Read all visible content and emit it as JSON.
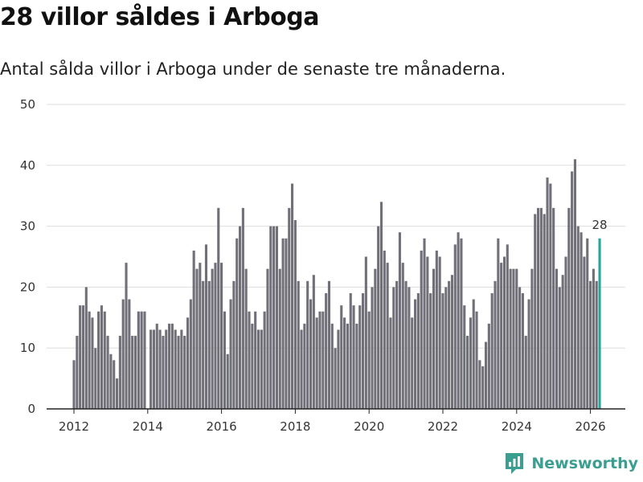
{
  "header": {
    "title": "28 villor såldes i Arboga",
    "subtitle": "Antal sålda villor i Arboga under de senaste tre månaderna."
  },
  "brand": {
    "name": "Newsworthy",
    "color": "#3a9e91"
  },
  "chart_data": {
    "type": "bar",
    "title": "28 villor såldes i Arboga",
    "subtitle": "Antal sålda villor i Arboga under de senaste tre månaderna.",
    "xlabel": "",
    "ylabel": "",
    "ylim": [
      0,
      50
    ],
    "yticks": [
      0,
      10,
      20,
      30,
      40,
      50
    ],
    "xticks": [
      {
        "label": "2012",
        "value": 2012
      },
      {
        "label": "2014",
        "value": 2014
      },
      {
        "label": "2016",
        "value": 2016
      },
      {
        "label": "2018",
        "value": 2018
      },
      {
        "label": "2020",
        "value": 2020
      },
      {
        "label": "2022",
        "value": 2022
      },
      {
        "label": "2024",
        "value": 2024
      },
      {
        "label": "2026",
        "value": 2026
      }
    ],
    "x_start": 2012.0,
    "x_step": 0.08333,
    "colors": {
      "bar": "#717079",
      "highlight": "#26a69a",
      "grid": "#dddddd",
      "axis": "#222222"
    },
    "highlight_label": "28",
    "values": [
      8,
      12,
      17,
      17,
      20,
      16,
      15,
      10,
      16,
      17,
      16,
      12,
      9,
      8,
      5,
      12,
      18,
      24,
      18,
      12,
      12,
      16,
      16,
      16,
      0,
      13,
      13,
      14,
      13,
      12,
      13,
      14,
      14,
      13,
      12,
      13,
      12,
      15,
      18,
      26,
      23,
      24,
      21,
      27,
      21,
      23,
      24,
      33,
      24,
      16,
      9,
      18,
      21,
      28,
      30,
      33,
      23,
      16,
      14,
      16,
      13,
      13,
      16,
      23,
      30,
      30,
      30,
      23,
      28,
      28,
      33,
      37,
      31,
      21,
      13,
      14,
      21,
      18,
      22,
      15,
      16,
      16,
      19,
      21,
      14,
      10,
      13,
      17,
      15,
      14,
      19,
      17,
      14,
      17,
      19,
      25,
      16,
      20,
      23,
      30,
      34,
      26,
      24,
      15,
      20,
      21,
      29,
      24,
      21,
      20,
      15,
      18,
      19,
      26,
      28,
      25,
      19,
      23,
      26,
      25,
      19,
      20,
      21,
      22,
      27,
      29,
      28,
      17,
      12,
      15,
      18,
      16,
      8,
      7,
      11,
      14,
      19,
      21,
      28,
      24,
      25,
      27,
      23,
      23,
      23,
      20,
      19,
      12,
      18,
      23,
      32,
      33,
      33,
      32,
      38,
      37,
      33,
      23,
      20,
      22,
      25,
      33,
      39,
      41,
      30,
      29,
      25,
      28,
      21,
      23,
      21,
      28
    ],
    "highlight_index": 171
  }
}
